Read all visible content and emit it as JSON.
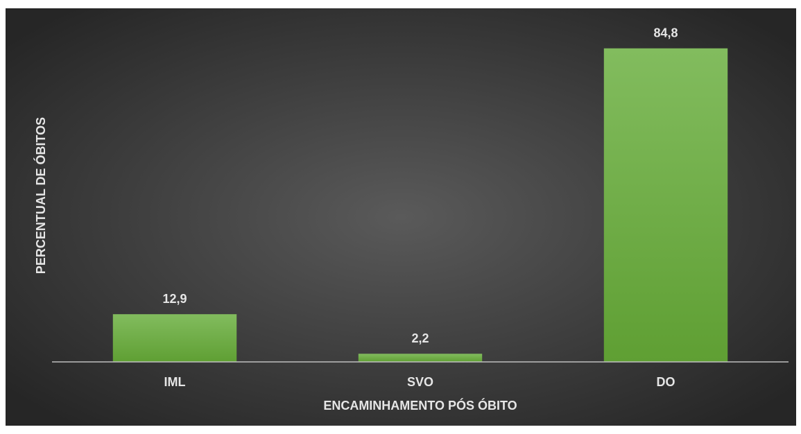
{
  "chart_data": {
    "type": "bar",
    "x_label": "ENCAMINHAMENTO PÓS ÓBITO",
    "y_label": "PERCENTUAL DE ÓBITOS",
    "categories": [
      "IML",
      "SVO",
      "DO"
    ],
    "values": [
      12.9,
      2.2,
      84.8
    ],
    "value_labels": [
      "12,9",
      "2,2",
      "84,8"
    ],
    "color": "#6aad3d",
    "ylim": [
      0,
      90
    ]
  }
}
